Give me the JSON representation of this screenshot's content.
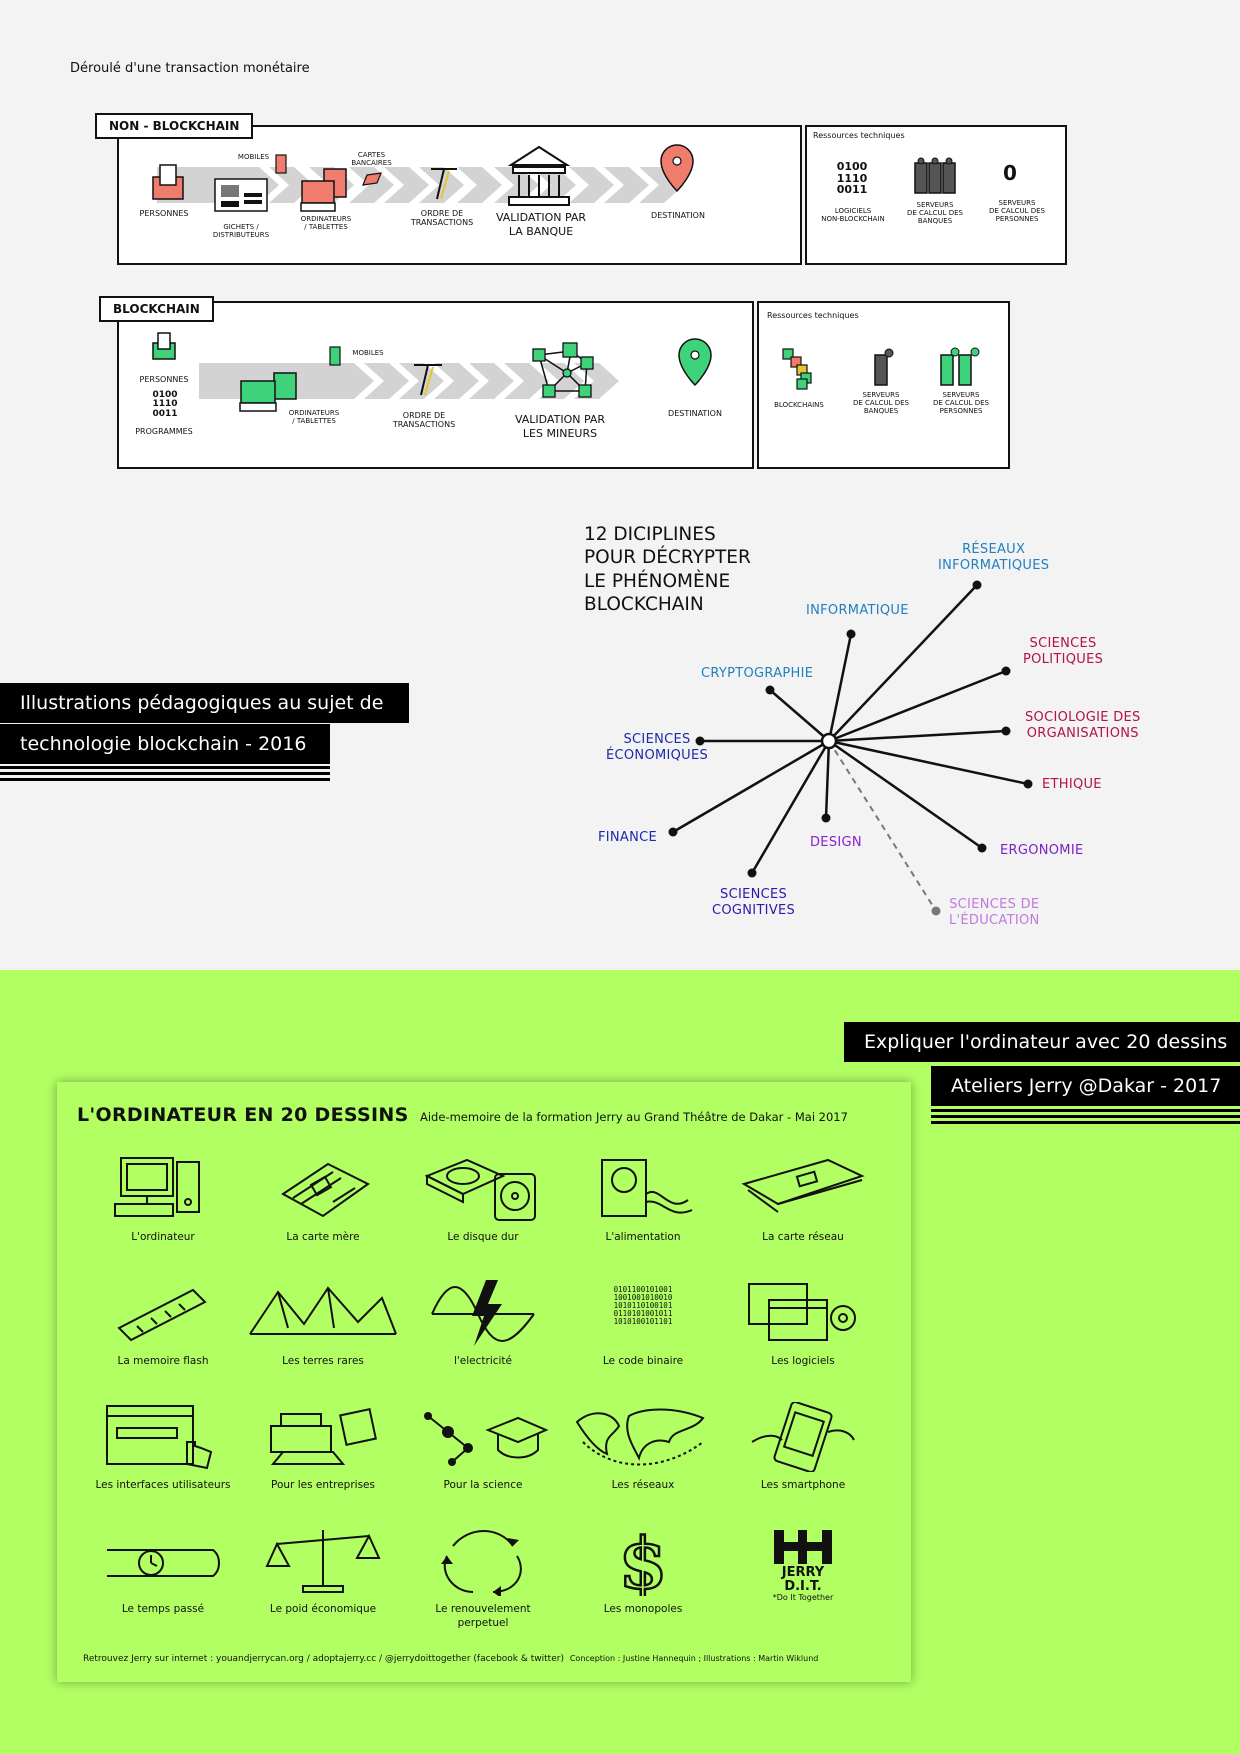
{
  "section1": {
    "title": "Déroulé d'une transaction monétaire",
    "non_blockchain": {
      "tag": "NON - BLOCKCHAIN",
      "labels": {
        "persons": "PERSONNES",
        "mobiles": "MOBILES",
        "gichets": "GICHETS /\nDISTRIBUTEURS",
        "cards": "CARTES\nBANCAIRES",
        "computers": "ORDINATEURS\n/ TABLETTES",
        "order": "ORDRE DE\nTRANSACTIONS",
        "validation": "VALIDATION PAR\nLA BANQUE",
        "destination": "DESTINATION"
      },
      "resources": {
        "title": "Ressources techniques",
        "binary": "0100\n1110\n0011",
        "zero": "0",
        "software": "LOGICIELS\nNON-BLOCKCHAIN",
        "bank_servers": "SERVEURS\nDE CALCUL DES\nBANQUES",
        "person_servers": "SERVEURS\nDE CALCUL DES\nPERSONNES"
      }
    },
    "blockchain": {
      "tag": "BLOCKCHAIN",
      "labels": {
        "persons": "PERSONNES",
        "binary": "0100\n1110\n0011",
        "programs": "PROGRAMMES",
        "mobiles": "MOBILES",
        "computers": "ORDINATEURS\n/ TABLETTES",
        "order": "ORDRE DE\nTRANSACTIONS",
        "validation": "VALIDATION PAR\nLES MINEURS",
        "destination": "DESTINATION"
      },
      "resources": {
        "title": "Ressources techniques",
        "blockchains": "BLOCKCHAINS",
        "bank_servers": "SERVEURS\nDE CALCUL DES\nBANQUES",
        "person_servers": "SERVEURS\nDE CALCUL DES\nPERSONNES"
      }
    }
  },
  "project1": {
    "line1": "Illustrations pédagogiques au sujet de",
    "line2": "technologie blockchain - 2016"
  },
  "disciplines": {
    "title": "12 DICIPLINES\nPOUR DÉCRYPTER\nLE PHÉNOMÈNE\nBLOCKCHAIN",
    "items": [
      {
        "label": "RÉSEAUX\nINFORMATIQUES",
        "color": "#1f7fc0"
      },
      {
        "label": "INFORMATIQUE",
        "color": "#1f7fc0"
      },
      {
        "label": "CRYPTOGRAPHIE",
        "color": "#1f7fc0"
      },
      {
        "label": "SCIENCES\nPOLITIQUES",
        "color": "#b0124a"
      },
      {
        "label": "SOCIOLOGIE DES\nORGANISATIONS",
        "color": "#b0124a"
      },
      {
        "label": "ETHIQUE",
        "color": "#b0124a"
      },
      {
        "label": "SCIENCES\nÉCONOMIQUES",
        "color": "#1b2aa8"
      },
      {
        "label": "FINANCE",
        "color": "#1b2aa8"
      },
      {
        "label": "SCIENCES\nCOGNITIVES",
        "color": "#2a1aa8"
      },
      {
        "label": "DESIGN",
        "color": "#8e1fc9"
      },
      {
        "label": "ERGONOMIE",
        "color": "#7a1fc9"
      },
      {
        "label": "SCIENCES DE\nL'ÉDUCATION",
        "color": "#c07adf"
      }
    ]
  },
  "project2": {
    "line1": "Expliquer l'ordinateur avec 20 dessins",
    "line2": "Ateliers Jerry @Dakar - 2017"
  },
  "poster": {
    "title": "L'ORDINATEUR EN 20 DESSINS",
    "subtitle": "Aide-memoire de la formation Jerry au Grand Théâtre de Dakar - Mai 2017",
    "items": [
      "L'ordinateur",
      "La carte mère",
      "Le disque dur",
      "L'alimentation",
      "La carte réseau",
      "La memoire flash",
      "Les terres rares",
      "l'electricité",
      "Le code binaire",
      "Les logiciels",
      "Les interfaces utilisateurs",
      "Pour les entreprises",
      "Pour la science",
      "Les réseaux",
      "Les smartphone",
      "Le temps passé",
      "Le poid économique",
      "Le renouvelement\nperpetuel",
      "Les monopoles",
      ""
    ],
    "binary_art": "0101100101001\n1001001010010\n1010110100101\n0110101001011\n1010100101101",
    "jerry_logo": "JERRY\nD.I.T.",
    "jerry_tag": "*Do It Together",
    "footer": "Retrouvez Jerry sur internet : youandjerrycan.org / adoptajerry.cc / @jerrydoittogether (facebook & twitter)",
    "credits": "Conception : Justine Hannequin ; Illustrations : Martin Wiklund"
  },
  "colors": {
    "salmon": "#ef7c6c",
    "green": "#3ed37a",
    "lime": "#b1ff63",
    "arrow_grey": "#d3d3d3",
    "dashed": "#777777"
  }
}
